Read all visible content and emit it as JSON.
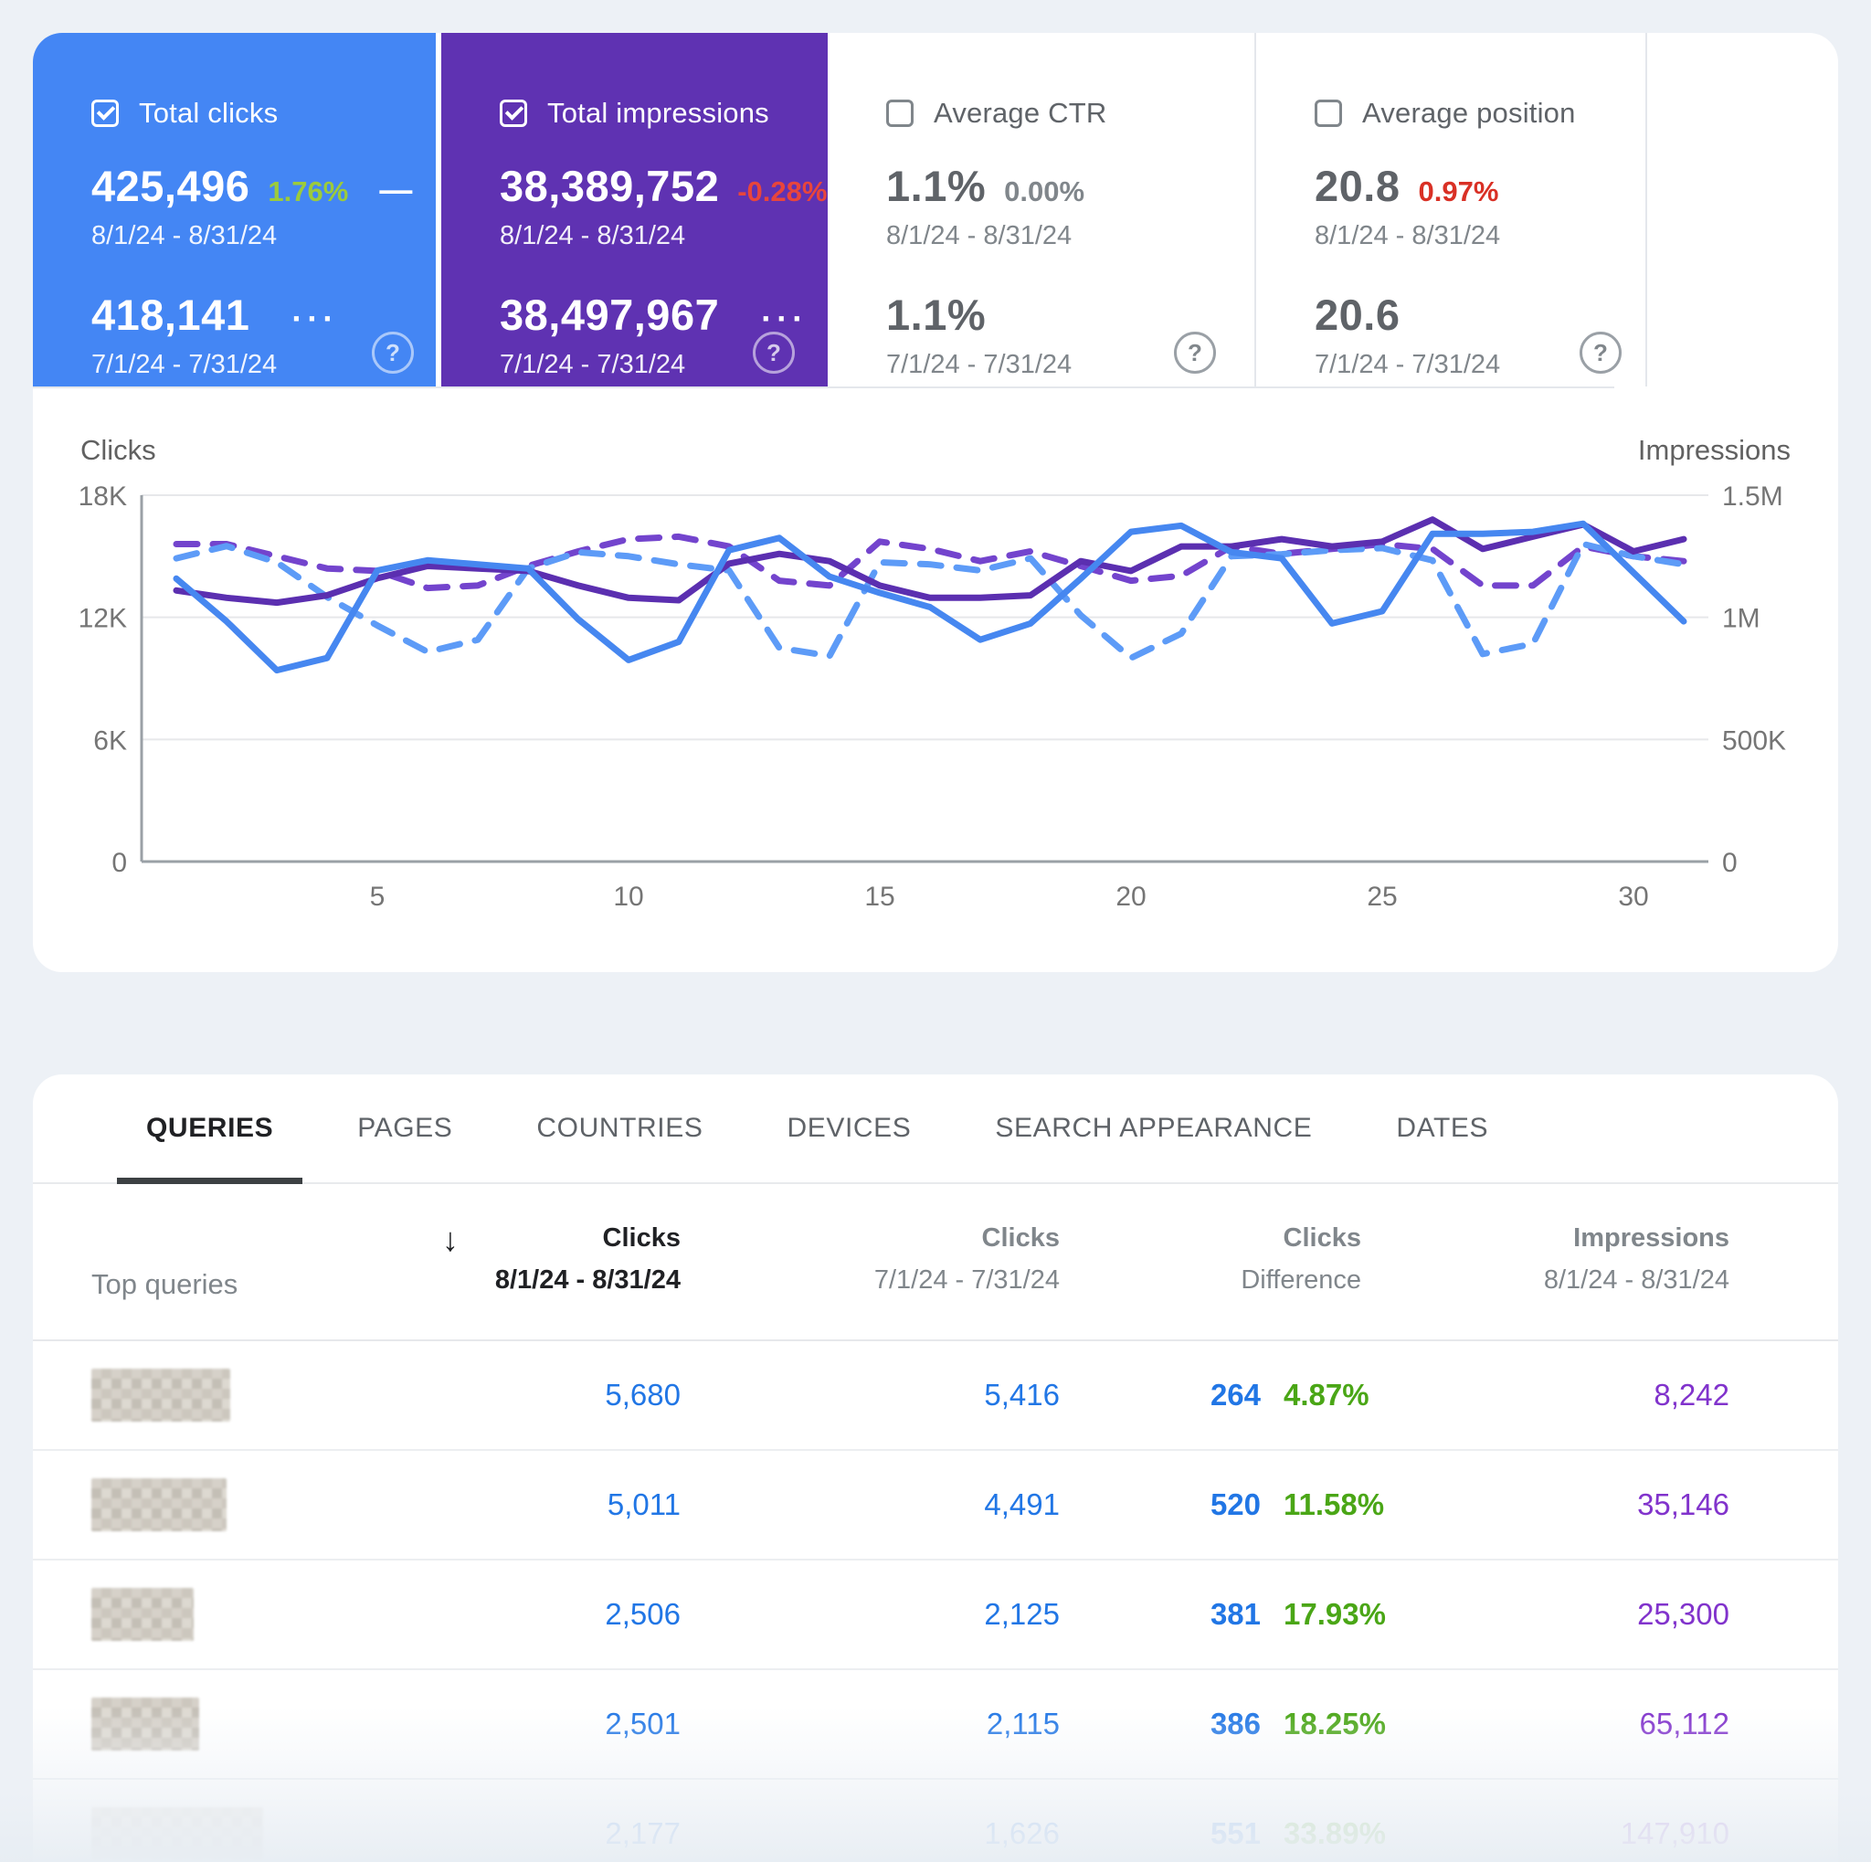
{
  "cards": [
    {
      "label": "Total clicks",
      "checked": true,
      "value_current": "425,496",
      "delta": "1.76%",
      "delta_color": "#9ccb3b",
      "trend_marker": "—",
      "range_current": "8/1/24 - 8/31/24",
      "value_previous": "418,141",
      "more_marker": "···",
      "range_previous": "7/1/24 - 7/31/24",
      "help_glyph": "?",
      "bg_color": "#4486f4"
    },
    {
      "label": "Total impressions",
      "checked": true,
      "value_current": "38,389,752",
      "delta": "-0.28%",
      "delta_color": "#e8453c",
      "range_current": "8/1/24 - 8/31/24",
      "value_previous": "38,497,967",
      "more_marker": "···",
      "range_previous": "7/1/24 - 7/31/24",
      "help_glyph": "?",
      "bg_color": "#5f32b2"
    },
    {
      "label": "Average CTR",
      "checked": false,
      "value_current": "1.1%",
      "delta": "0.00%",
      "delta_color": "#80868b",
      "range_current": "8/1/24 - 8/31/24",
      "value_previous": "1.1%",
      "range_previous": "7/1/24 - 7/31/24",
      "help_glyph": "?"
    },
    {
      "label": "Average position",
      "checked": false,
      "value_current": "20.8",
      "delta": "0.97%",
      "delta_color": "#d93025",
      "range_current": "8/1/24 - 8/31/24",
      "value_previous": "20.6",
      "range_previous": "7/1/24 - 7/31/24",
      "help_glyph": "?"
    }
  ],
  "chart_data": {
    "type": "line",
    "x": [
      1,
      2,
      3,
      4,
      5,
      6,
      7,
      8,
      9,
      10,
      11,
      12,
      13,
      14,
      15,
      16,
      17,
      18,
      19,
      20,
      21,
      22,
      23,
      24,
      25,
      26,
      27,
      28,
      29,
      30,
      31
    ],
    "x_ticks": [
      "5",
      "10",
      "15",
      "20",
      "25",
      "30"
    ],
    "x_tick_days": [
      5,
      10,
      15,
      20,
      25,
      30
    ],
    "left_axis": {
      "title": "Clicks",
      "ticks": [
        "18K",
        "12K",
        "6K",
        "0"
      ],
      "ylim": [
        0,
        18000
      ]
    },
    "right_axis": {
      "title": "Impressions",
      "ticks": [
        "1.5M",
        "1M",
        "500K",
        "0"
      ],
      "ylim": [
        0,
        1500000
      ]
    },
    "grid": true,
    "legend_position": "none",
    "series": [
      {
        "name": "Total impressions 7/1/24 - 7/31/24",
        "axis": "impressions",
        "dashed": true,
        "color": "#7344cd",
        "values": [
          1300000,
          1300000,
          1250000,
          1200000,
          1190000,
          1120000,
          1130000,
          1210000,
          1270000,
          1320000,
          1330000,
          1290000,
          1150000,
          1130000,
          1310000,
          1280000,
          1230000,
          1270000,
          1210000,
          1150000,
          1170000,
          1290000,
          1260000,
          1280000,
          1300000,
          1280000,
          1130000,
          1130000,
          1290000,
          1250000,
          1230000
        ]
      },
      {
        "name": "Total clicks 7/1/24 - 7/31/24",
        "axis": "clicks",
        "dashed": true,
        "color": "#5d9bf7",
        "values": [
          14900,
          15500,
          14700,
          13000,
          11600,
          10300,
          10900,
          14400,
          15200,
          15000,
          14600,
          14300,
          10500,
          10100,
          14700,
          14600,
          14300,
          14900,
          12100,
          10000,
          11200,
          15000,
          15100,
          15300,
          15400,
          14800,
          10200,
          10700,
          15600,
          15000,
          14600
        ]
      },
      {
        "name": "Total impressions 8/1/24 - 8/31/24",
        "axis": "impressions",
        "dashed": false,
        "color": "#5b2fb0",
        "values": [
          1110000,
          1080000,
          1060000,
          1090000,
          1160000,
          1210000,
          1200000,
          1190000,
          1130000,
          1080000,
          1070000,
          1220000,
          1260000,
          1230000,
          1130000,
          1080000,
          1080000,
          1090000,
          1230000,
          1190000,
          1290000,
          1290000,
          1320000,
          1290000,
          1310000,
          1400000,
          1280000,
          1330000,
          1380000,
          1270000,
          1320000
        ]
      },
      {
        "name": "Total clicks 8/1/24 - 8/31/24",
        "axis": "clicks",
        "dashed": false,
        "color": "#4687f0",
        "values": [
          13900,
          11800,
          9400,
          10000,
          14300,
          14800,
          14600,
          14400,
          11900,
          9900,
          10800,
          15300,
          15900,
          14000,
          13200,
          12500,
          10900,
          11700,
          13900,
          16200,
          16500,
          15200,
          14900,
          11700,
          12300,
          16100,
          16100,
          16200,
          16600,
          14200,
          11800
        ]
      }
    ]
  },
  "tabs": {
    "active_index": 0,
    "items": [
      "QUERIES",
      "PAGES",
      "COUNTRIES",
      "DEVICES",
      "SEARCH APPEARANCE",
      "DATES"
    ]
  },
  "table": {
    "row_label_header": "Top queries",
    "sort_icon": "↓",
    "columns": [
      {
        "line1": "Clicks",
        "line2": "8/1/24 - 8/31/24",
        "sorted": true
      },
      {
        "line1": "Clicks",
        "line2": "7/1/24 - 7/31/24",
        "sorted": false
      },
      {
        "line1": "Clicks",
        "line2": "Difference",
        "sorted": false
      },
      {
        "line1": "Impressions",
        "line2": "8/1/24 - 8/31/24",
        "sorted": false
      }
    ],
    "rows": [
      {
        "query_redacted": true,
        "clicks_current": "5,680",
        "clicks_previous": "5,416",
        "diff": "264",
        "diff_pct": "4.87%",
        "impressions": "8,242",
        "faded": false
      },
      {
        "query_redacted": true,
        "clicks_current": "5,011",
        "clicks_previous": "4,491",
        "diff": "520",
        "diff_pct": "11.58%",
        "impressions": "35,146",
        "faded": false
      },
      {
        "query_redacted": true,
        "clicks_current": "2,506",
        "clicks_previous": "2,125",
        "diff": "381",
        "diff_pct": "17.93%",
        "impressions": "25,300",
        "faded": false
      },
      {
        "query_redacted": true,
        "clicks_current": "2,501",
        "clicks_previous": "2,115",
        "diff": "386",
        "diff_pct": "18.25%",
        "impressions": "65,112",
        "faded": false
      },
      {
        "query_redacted": true,
        "clicks_current": "2,177",
        "clicks_previous": "1,626",
        "diff": "551",
        "diff_pct": "33.89%",
        "impressions": "147,910",
        "faded": true
      }
    ],
    "value_colors": {
      "clicks": "#2176e5",
      "diff_pct": "#4aa616",
      "impressions": "#8133cc"
    }
  }
}
